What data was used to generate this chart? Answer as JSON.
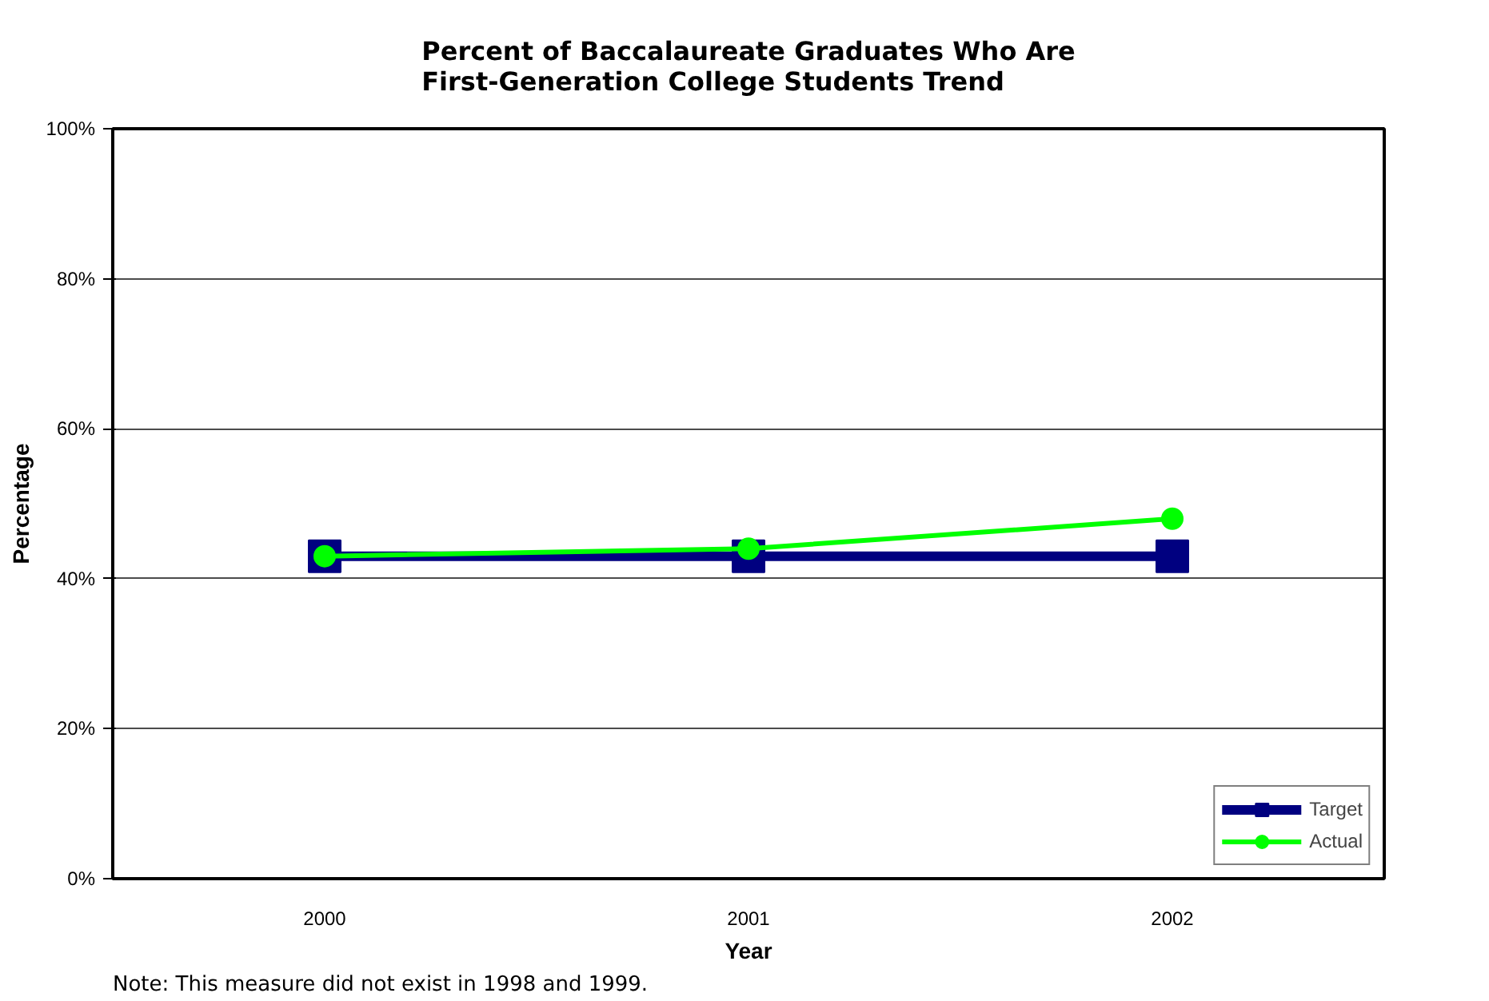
{
  "chart_data": {
    "type": "line",
    "title": "Percent of Baccalaureate Graduates Who Are\nFirst-Generation College Students Trend",
    "xlabel": "Year",
    "ylabel": "Percentage",
    "categories": [
      "2000",
      "2001",
      "2002"
    ],
    "series": [
      {
        "name": "Target",
        "color": "#000080",
        "values": [
          43,
          43,
          43
        ],
        "marker": "square"
      },
      {
        "name": "Actual",
        "color": "#00ff00",
        "values": [
          43,
          44,
          48
        ],
        "marker": "circle"
      }
    ],
    "ylim": [
      0,
      100
    ],
    "yticks": [
      {
        "value": 0,
        "label": "0%"
      },
      {
        "value": 20,
        "label": "20%"
      },
      {
        "value": 40,
        "label": "40%"
      },
      {
        "value": 60,
        "label": "60%"
      },
      {
        "value": 80,
        "label": "80%"
      },
      {
        "value": 100,
        "label": "100%"
      }
    ],
    "grid": "y",
    "legend": "bottom right",
    "line_style": "solid",
    "annotations": [
      "Note: This measure did not exist in 1998 and 1999."
    ]
  }
}
